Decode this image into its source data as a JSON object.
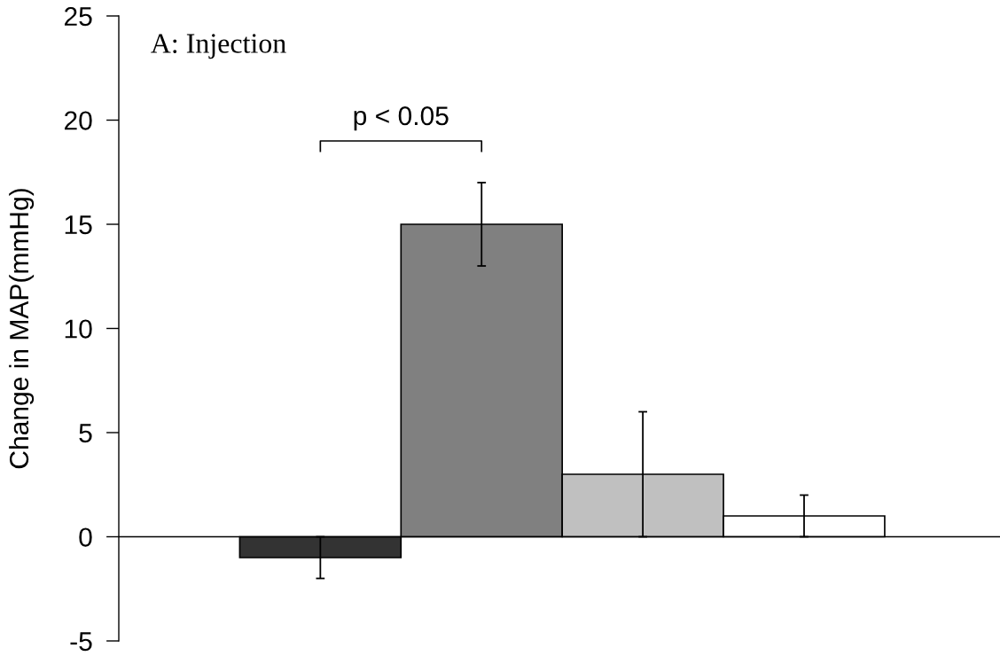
{
  "chart_data": {
    "type": "bar",
    "title": "A: Injection",
    "ylabel": "Change in MAP(mmHg)",
    "categories": [
      null,
      null,
      null,
      null
    ],
    "values": [
      -1,
      15,
      3,
      1
    ],
    "colors": [
      "#333333",
      "#808080",
      "#c0c0c0",
      "#ffffff"
    ],
    "errors": [
      1,
      2,
      3,
      1
    ],
    "ylim": [
      -5,
      25
    ],
    "yticks": [
      -5,
      0,
      5,
      10,
      15,
      20,
      25
    ],
    "tick_labels": "y",
    "annotations": [
      "p < 0.05"
    ]
  }
}
